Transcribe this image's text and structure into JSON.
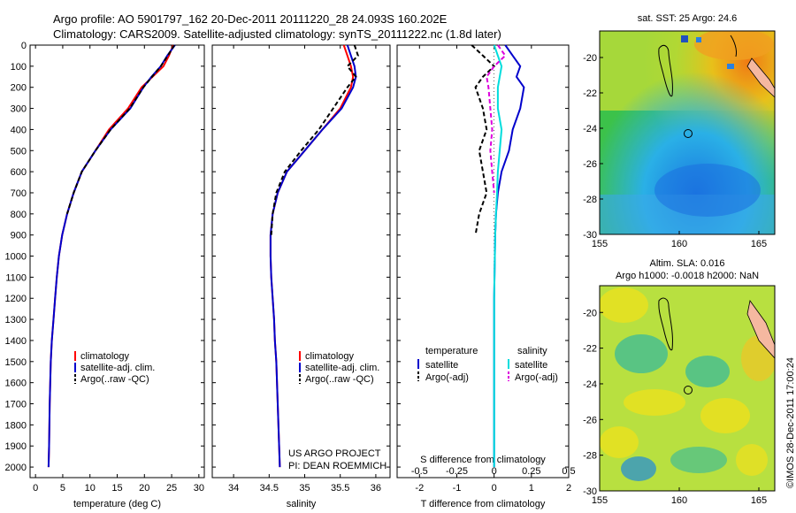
{
  "header": {
    "line1": "Argo profile: AO 5901797_162 20-Dec-2011 20111220_28 24.093S 160.202E",
    "line2": "Climatology: CARS2009. Satellite-adjusted climatology: synTS_20111222.nc (1.8d later)"
  },
  "credit": "©IMOS 28-Dec-2011 17:00:24",
  "chart_data": [
    {
      "type": "line",
      "xlabel": "temperature (deg C)",
      "ylabel": "",
      "xlim": [
        -1,
        31
      ],
      "ylim": [
        2050,
        0
      ],
      "xticks": [
        "0",
        "5",
        "10",
        "15",
        "20",
        "25",
        "30"
      ],
      "yticks": [
        "0",
        "100",
        "200",
        "300",
        "400",
        "500",
        "600",
        "700",
        "800",
        "900",
        "1000",
        "1100",
        "1200",
        "1300",
        "1400",
        "1500",
        "1600",
        "1700",
        "1800",
        "1900",
        "2000"
      ],
      "legend": [
        "climatology",
        "satellite-adj. clim.",
        "Argo(..raw -QC)"
      ],
      "series": [
        {
          "name": "climatology",
          "color": "#ff0000",
          "x": [
            25.3,
            24.5,
            23.5,
            21.5,
            19.5,
            17.0,
            13.5,
            11.0,
            8.5,
            7.0,
            5.8,
            4.9,
            4.3,
            3.9,
            3.6,
            3.3,
            3.0,
            2.8,
            2.6,
            2.5,
            2.4
          ],
          "y": [
            0,
            50,
            100,
            150,
            200,
            300,
            400,
            500,
            600,
            700,
            800,
            900,
            1000,
            1100,
            1200,
            1300,
            1400,
            1500,
            1700,
            1900,
            2000
          ]
        },
        {
          "name": "satellite-adj. clim.",
          "color": "#0000cc",
          "x": [
            25.6,
            24.2,
            23.0,
            21.3,
            19.8,
            17.4,
            13.8,
            11.0,
            8.5,
            7.0,
            5.8,
            4.9,
            4.3,
            3.9,
            3.6,
            3.3,
            3.0,
            2.8,
            2.6,
            2.5,
            2.4
          ],
          "y": [
            0,
            50,
            100,
            150,
            200,
            300,
            400,
            500,
            600,
            700,
            800,
            900,
            1000,
            1100,
            1200,
            1300,
            1400,
            1500,
            1700,
            1900,
            2000
          ]
        },
        {
          "name": "Argo(..raw -QC)",
          "color": "#000000",
          "x": [
            25.5,
            24.3,
            23.0,
            21.4,
            19.8,
            17.3,
            13.8,
            11.0,
            8.5,
            7.0,
            5.8
          ],
          "y": [
            0,
            50,
            100,
            150,
            200,
            300,
            400,
            500,
            600,
            700,
            800
          ]
        }
      ]
    },
    {
      "type": "line",
      "xlabel": "salinity",
      "xlim": [
        33.7,
        36.2
      ],
      "ylim": [
        2050,
        0
      ],
      "xticks": [
        "34",
        "34.5",
        "35",
        "35.5",
        "36"
      ],
      "legend": [
        "climatology",
        "satellite-adj. clim.",
        "Argo(..raw -QC)"
      ],
      "annotations": [
        "US ARGO PROJECT",
        "PI: DEAN ROEMMICH"
      ],
      "series": [
        {
          "name": "climatology",
          "color": "#ff0000",
          "x": [
            35.55,
            35.6,
            35.65,
            35.68,
            35.65,
            35.5,
            35.25,
            35.0,
            34.75,
            34.62,
            34.55,
            34.52,
            34.52,
            34.53,
            34.55,
            34.57,
            34.58,
            34.6,
            34.62,
            34.64,
            34.65
          ],
          "y": [
            0,
            50,
            100,
            150,
            200,
            300,
            400,
            500,
            600,
            700,
            800,
            900,
            1000,
            1100,
            1200,
            1300,
            1400,
            1500,
            1700,
            1900,
            2000
          ]
        },
        {
          "name": "satellite-adj. clim.",
          "color": "#0000cc",
          "x": [
            35.6,
            35.65,
            35.7,
            35.72,
            35.68,
            35.52,
            35.25,
            35.0,
            34.75,
            34.62,
            34.55,
            34.52,
            34.52,
            34.53,
            34.55,
            34.57,
            34.58,
            34.6,
            34.62,
            34.64,
            34.65
          ],
          "y": [
            0,
            50,
            100,
            150,
            200,
            300,
            400,
            500,
            600,
            700,
            800,
            900,
            1000,
            1100,
            1200,
            1300,
            1400,
            1500,
            1700,
            1900,
            2000
          ]
        },
        {
          "name": "Argo(..raw -QC)",
          "color": "#000000",
          "x": [
            35.7,
            35.75,
            35.6,
            35.72,
            35.6,
            35.4,
            35.2,
            34.95,
            34.72,
            34.6,
            34.55,
            34.53
          ],
          "y": [
            0,
            50,
            100,
            150,
            200,
            300,
            400,
            500,
            600,
            700,
            800,
            900
          ]
        }
      ]
    },
    {
      "type": "line",
      "xlabel": "T difference from climatology",
      "xlabel_top": "S difference from climatology",
      "xlim": [
        -2.6,
        2.0
      ],
      "ylim": [
        2050,
        0
      ],
      "xticks": [
        "-2",
        "-1",
        "0",
        "1",
        "2"
      ],
      "xticks_top": [
        "-0.5",
        "-0.25",
        "0",
        "0.25",
        "0.5"
      ],
      "legend": [
        "temperature",
        "salinity",
        "satellite",
        "Argo(-adj)",
        "satellite",
        "Argo(-adj)"
      ],
      "series": [
        {
          "name": "satellite",
          "color": "#0000cc",
          "x": [
            0.3,
            0.5,
            0.7,
            0.6,
            0.8,
            0.7,
            0.5,
            0.4,
            0.2,
            0.1,
            0.05,
            0.03,
            0.02,
            0.0,
            0.0,
            0.0,
            0.0,
            0.0,
            0.0
          ],
          "y": [
            0,
            50,
            100,
            150,
            200,
            300,
            400,
            500,
            600,
            700,
            800,
            900,
            1000,
            1200,
            1400,
            1600,
            1800,
            1900,
            2000
          ]
        },
        {
          "name": "Argo(-adj)",
          "color": "#000000",
          "x": [
            -0.6,
            -0.3,
            0.0,
            -0.3,
            -0.5,
            -0.3,
            -0.2,
            -0.4,
            -0.3,
            -0.2,
            -0.4,
            -0.5
          ],
          "y": [
            0,
            50,
            100,
            150,
            200,
            300,
            400,
            500,
            600,
            700,
            800,
            900
          ]
        },
        {
          "name": "satellite",
          "color": "#00dddd",
          "x": [
            0.0,
            0.1,
            0.2,
            0.15,
            0.1,
            0.1,
            0.2,
            0.15,
            0.1,
            0.08,
            0.05,
            0.03,
            0.02,
            0.0,
            0.0,
            0.0,
            0.0
          ],
          "y": [
            0,
            50,
            100,
            150,
            200,
            300,
            400,
            500,
            600,
            700,
            800,
            900,
            1000,
            1200,
            1400,
            1700,
            2000
          ]
        },
        {
          "name": "Argo(-adj)",
          "color": "#dd00dd",
          "x": [
            0.1,
            0.3,
            0.0,
            -0.2,
            -0.15,
            -0.1,
            -0.05,
            -0.1,
            -0.05,
            0.0
          ],
          "y": [
            0,
            50,
            100,
            150,
            200,
            300,
            400,
            500,
            600,
            700
          ]
        }
      ]
    },
    {
      "type": "heatmap",
      "title": "sat. SST: 25 Argo: 24.6",
      "xlim": [
        155,
        166
      ],
      "ylim": [
        -30,
        -18.5
      ],
      "xticks": [
        "155",
        "160",
        "165"
      ],
      "yticks": [
        "-20",
        "-22",
        "-24",
        "-26",
        "-28",
        "-30"
      ]
    },
    {
      "type": "heatmap",
      "title_lines": [
        "Altim. SLA: 0.016",
        "Argo h1000: -0.0018 h2000: NaN"
      ],
      "xlim": [
        155,
        166
      ],
      "ylim": [
        -30,
        -18.5
      ],
      "xticks": [
        "155",
        "160",
        "165"
      ],
      "yticks": [
        "-20",
        "-22",
        "-24",
        "-26",
        "-28",
        "-30"
      ]
    }
  ]
}
